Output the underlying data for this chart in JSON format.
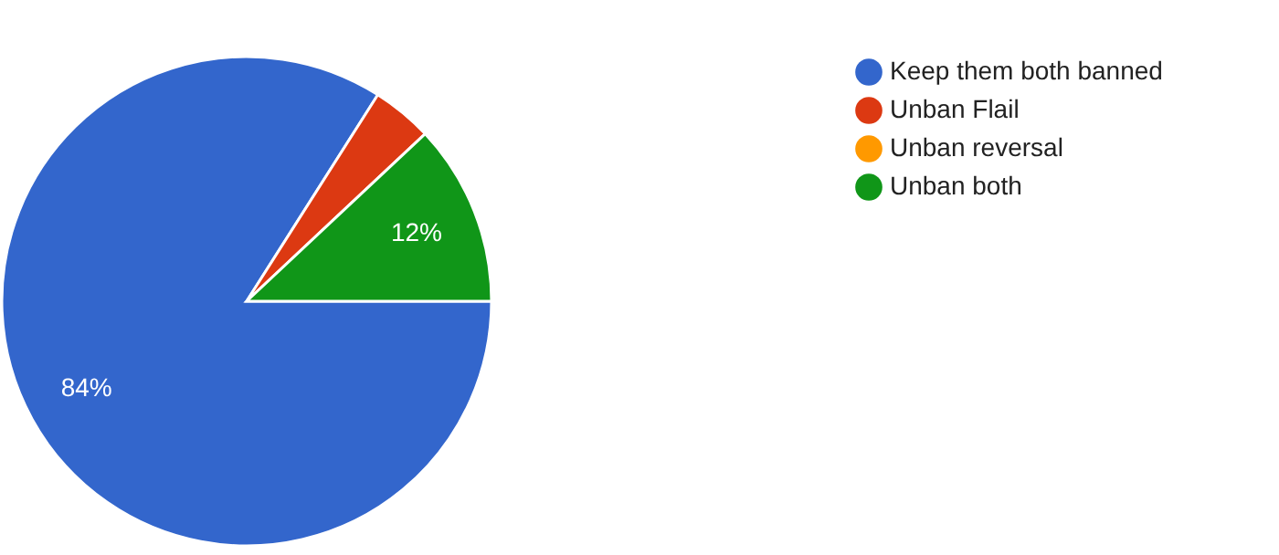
{
  "chart_data": {
    "type": "pie",
    "categories": [
      "Keep them both banned",
      "Unban Flail",
      "Unban reversal",
      "Unban both"
    ],
    "values": [
      84,
      4,
      0,
      12
    ],
    "colors": [
      "#3366cc",
      "#dc3912",
      "#ff9900",
      "#109618"
    ],
    "value_labels": [
      "84%",
      null,
      null,
      "12%"
    ],
    "legend": "top right"
  }
}
